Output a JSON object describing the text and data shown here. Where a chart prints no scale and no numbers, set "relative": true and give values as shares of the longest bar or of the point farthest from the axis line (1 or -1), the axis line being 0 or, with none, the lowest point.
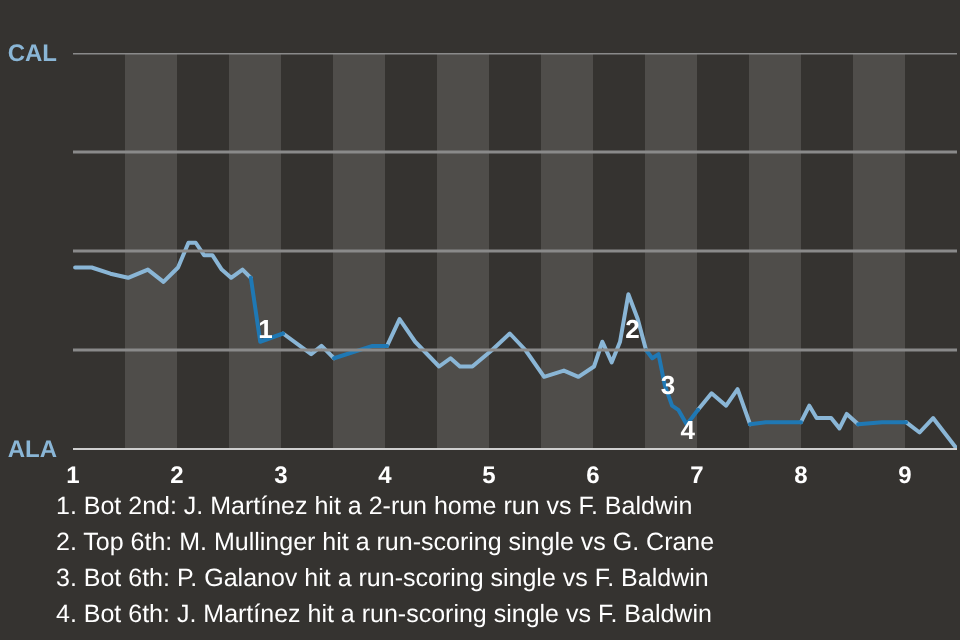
{
  "chart_data": {
    "type": "line",
    "relative": true,
    "xlim": [
      1,
      9.5
    ],
    "xticks": [
      1,
      2,
      3,
      4,
      5,
      6,
      7,
      8,
      9
    ],
    "marker": "none",
    "line_style": "solid",
    "ref_lines": [
      {
        "axis": "y",
        "value": 0.48,
        "label": null,
        "color": "#8a8a8a"
      },
      {
        "axis": "y",
        "value": 0.96,
        "label": null,
        "color": "#8a8a8a"
      },
      {
        "axis": "y",
        "value": 1.44,
        "label": null,
        "color": "#8a8a8a"
      },
      {
        "axis": "y",
        "value": 1.92,
        "label": null,
        "color": "#8a8a8a"
      }
    ],
    "series": [
      {
        "color": "#8ab6d6",
        "x": [
          1.02,
          1.18,
          1.36,
          1.53,
          1.72,
          1.87,
          2.01,
          2.11,
          2.18,
          2.26,
          2.34,
          2.43,
          2.52,
          2.63,
          2.71,
          2.8,
          3.02,
          3.29,
          3.39,
          3.51,
          3.88,
          4.02,
          4.14,
          4.29,
          4.52,
          4.63,
          4.72,
          4.84,
          5.03,
          5.2,
          5.35,
          5.53,
          5.72,
          5.86,
          6.01,
          6.09,
          6.18,
          6.26,
          6.34,
          6.43,
          6.51,
          6.57,
          7.01,
          7.14,
          7.28,
          7.39,
          7.51,
          7.66,
          8.0,
          8.08,
          8.15,
          8.29,
          8.37,
          8.44,
          8.55,
          8.78,
          9.01,
          9.14,
          9.27,
          9.5
        ],
        "values": [
          0.88,
          0.88,
          0.85,
          0.83,
          0.87,
          0.81,
          0.88,
          1,
          1,
          0.94,
          0.94,
          0.87,
          0.83,
          0.87,
          0.83,
          null,
          0.56,
          0.46,
          0.5,
          0.44,
          null,
          0.5,
          0.63,
          0.52,
          0.4,
          0.44,
          0.4,
          0.4,
          0.48,
          0.56,
          0.48,
          0.35,
          0.38,
          0.35,
          0.4,
          0.52,
          0.42,
          0.52,
          0.75,
          0.63,
          0.48,
          null,
          0.19,
          0.27,
          0.21,
          0.29,
          0.12,
          null,
          0.13,
          0.21,
          0.15,
          0.15,
          0.1,
          0.17,
          0.12,
          null,
          0.13,
          0.08,
          0.15,
          0
        ]
      },
      {
        "color": "#1f78b4",
        "x": [
          2.71,
          2.8,
          3.02,
          3.25,
          3.51,
          3.88,
          4.02,
          4.75,
          6.51,
          6.57,
          6.63,
          6.69,
          6.76,
          6.82,
          6.9,
          6.95,
          7.01,
          7.25,
          7.51,
          7.66,
          7.87,
          8.0,
          8.3,
          8.55,
          8.78,
          9.01
        ],
        "values": [
          0.83,
          0.52,
          0.56,
          null,
          0.44,
          0.5,
          0.5,
          null,
          0.48,
          0.44,
          0.46,
          0.31,
          0.21,
          0.19,
          0.12,
          0.15,
          0.19,
          null,
          0.12,
          0.13,
          0.13,
          0.13,
          null,
          0.12,
          0.13,
          0.13
        ]
      }
    ],
    "bands": [
      {
        "axis": "x",
        "from": 1.5,
        "to": 2,
        "color": "#4f4d4a"
      },
      {
        "axis": "x",
        "from": 2.5,
        "to": 3,
        "color": "#4f4d4a"
      },
      {
        "axis": "x",
        "from": 3.5,
        "to": 4,
        "color": "#4f4d4a"
      },
      {
        "axis": "x",
        "from": 4.5,
        "to": 5,
        "color": "#4f4d4a"
      },
      {
        "axis": "x",
        "from": 5.5,
        "to": 6,
        "color": "#4f4d4a"
      },
      {
        "axis": "x",
        "from": 6.5,
        "to": 7,
        "color": "#4f4d4a"
      },
      {
        "axis": "x",
        "from": 7.5,
        "to": 8,
        "color": "#4f4d4a"
      },
      {
        "axis": "x",
        "from": 8.5,
        "to": 9,
        "color": "#4f4d4a"
      }
    ],
    "annotations": [
      "CAL",
      "ALA",
      {
        "text": "1",
        "x": 2.85,
        "y": 0.58
      },
      {
        "text": "2",
        "x": 6.38,
        "y": 0.58
      },
      {
        "text": "3",
        "x": 6.72,
        "y": 0.31
      },
      {
        "text": "4",
        "x": 6.91,
        "y": 0.09
      },
      "1. Bot 2nd: J. Martínez hit a 2-run home run vs F. Baldwin",
      "2. Top 6th: M. Mullinger hit a run-scoring single vs G. Crane",
      "3. Bot 6th: P. Galanov hit a run-scoring single vs F. Baldwin",
      "4. Bot 6th: J. Martínez hit a run-scoring single vs F. Baldwin"
    ]
  }
}
